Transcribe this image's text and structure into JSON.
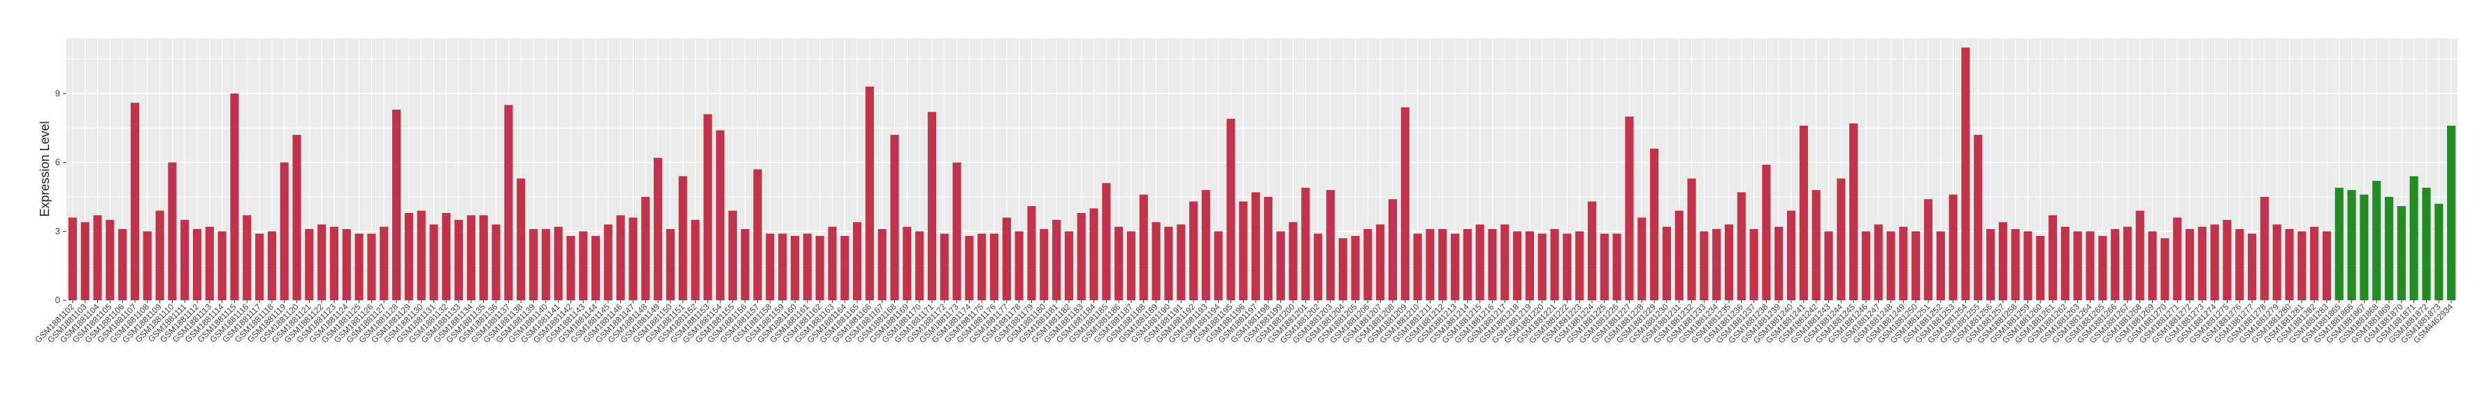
{
  "chart_data": {
    "type": "bar",
    "title": "",
    "xlabel": "",
    "ylabel": "Expression Level",
    "ylim": [
      0,
      11.4
    ],
    "yticks": [
      0,
      3,
      6,
      9
    ],
    "grid": true,
    "legend": "none",
    "colors": {
      "group_a": "#C0334A",
      "group_b": "#228B22",
      "panel": "#EBEBEB",
      "grid": "#FFFFFF"
    },
    "categories": [
      "GSM1881102",
      "GSM1881103",
      "GSM1881104",
      "GSM1881105",
      "GSM1881106",
      "GSM1881107",
      "GSM1881108",
      "GSM1881109",
      "GSM1881110",
      "GSM1881111",
      "GSM1881112",
      "GSM1881113",
      "GSM1881114",
      "GSM1881115",
      "GSM1881116",
      "GSM1881117",
      "GSM1881118",
      "GSM1881119",
      "GSM1881120",
      "GSM1881121",
      "GSM1881122",
      "GSM1881123",
      "GSM1881124",
      "GSM1881125",
      "GSM1881126",
      "GSM1881127",
      "GSM1881128",
      "GSM1881129",
      "GSM1881130",
      "GSM1881131",
      "GSM1881132",
      "GSM1881133",
      "GSM1881134",
      "GSM1881135",
      "GSM1881136",
      "GSM1881137",
      "GSM1881138",
      "GSM1881139",
      "GSM1881140",
      "GSM1881141",
      "GSM1881142",
      "GSM1881143",
      "GSM1881144",
      "GSM1881145",
      "GSM1881146",
      "GSM1881147",
      "GSM1881148",
      "GSM1881149",
      "GSM1881150",
      "GSM1881151",
      "GSM1881152",
      "GSM1881153",
      "GSM1881154",
      "GSM1881155",
      "GSM1881156",
      "GSM1881157",
      "GSM1881158",
      "GSM1881159",
      "GSM1881160",
      "GSM1881161",
      "GSM1881162",
      "GSM1881163",
      "GSM1881164",
      "GSM1881165",
      "GSM1881166",
      "GSM1881167",
      "GSM1881168",
      "GSM1881169",
      "GSM1881170",
      "GSM1881171",
      "GSM1881172",
      "GSM1881173",
      "GSM1881174",
      "GSM1881175",
      "GSM1881176",
      "GSM1881177",
      "GSM1881178",
      "GSM1881179",
      "GSM1881180",
      "GSM1881181",
      "GSM1881182",
      "GSM1881183",
      "GSM1881184",
      "GSM1881185",
      "GSM1881186",
      "GSM1881187",
      "GSM1881188",
      "GSM1881189",
      "GSM1881190",
      "GSM1881191",
      "GSM1881192",
      "GSM1881193",
      "GSM1881194",
      "GSM1881195",
      "GSM1881196",
      "GSM1881197",
      "GSM1881198",
      "GSM1881199",
      "GSM1881200",
      "GSM1881201",
      "GSM1881202",
      "GSM1881203",
      "GSM1881204",
      "GSM1881205",
      "GSM1881206",
      "GSM1881207",
      "GSM1881208",
      "GSM1881209",
      "GSM1881210",
      "GSM1881211",
      "GSM1881212",
      "GSM1881213",
      "GSM1881214",
      "GSM1881215",
      "GSM1881216",
      "GSM1881217",
      "GSM1881218",
      "GSM1881219",
      "GSM1881220",
      "GSM1881221",
      "GSM1881222",
      "GSM1881223",
      "GSM1881224",
      "GSM1881225",
      "GSM1881226",
      "GSM1881227",
      "GSM1881228",
      "GSM1881229",
      "GSM1881230",
      "GSM1881231",
      "GSM1881232",
      "GSM1881233",
      "GSM1881234",
      "GSM1881235",
      "GSM1881236",
      "GSM1881237",
      "GSM1881238",
      "GSM1881239",
      "GSM1881240",
      "GSM1881241",
      "GSM1881242",
      "GSM1881243",
      "GSM1881244",
      "GSM1881245",
      "GSM1881246",
      "GSM1881247",
      "GSM1881248",
      "GSM1881249",
      "GSM1881250",
      "GSM1881251",
      "GSM1881252",
      "GSM1881253",
      "GSM1881254",
      "GSM1881255",
      "GSM1881256",
      "GSM1881257",
      "GSM1881258",
      "GSM1881259",
      "GSM1881260",
      "GSM1881261",
      "GSM1881262",
      "GSM1881263",
      "GSM1881264",
      "GSM1881265",
      "GSM1881266",
      "GSM1881267",
      "GSM1881268",
      "GSM1881269",
      "GSM1881270",
      "GSM1881271",
      "GSM1881272",
      "GSM1881273",
      "GSM1881274",
      "GSM1881275",
      "GSM1881276",
      "GSM1881277",
      "GSM1881278",
      "GSM1881279",
      "GSM1881280",
      "GSM1881281",
      "GSM1881282",
      "GSM1881283",
      "GSM1881865",
      "GSM1881866",
      "GSM1881867",
      "GSM1881868",
      "GSM1881869",
      "GSM1881870",
      "GSM1881871",
      "GSM1881872",
      "GSM1881873",
      "GSM4462934"
    ],
    "groups": [
      "a",
      "a",
      "a",
      "a",
      "a",
      "a",
      "a",
      "a",
      "a",
      "a",
      "a",
      "a",
      "a",
      "a",
      "a",
      "a",
      "a",
      "a",
      "a",
      "a",
      "a",
      "a",
      "a",
      "a",
      "a",
      "a",
      "a",
      "a",
      "a",
      "a",
      "a",
      "a",
      "a",
      "a",
      "a",
      "a",
      "a",
      "a",
      "a",
      "a",
      "a",
      "a",
      "a",
      "a",
      "a",
      "a",
      "a",
      "a",
      "a",
      "a",
      "a",
      "a",
      "a",
      "a",
      "a",
      "a",
      "a",
      "a",
      "a",
      "a",
      "a",
      "a",
      "a",
      "a",
      "a",
      "a",
      "a",
      "a",
      "a",
      "a",
      "a",
      "a",
      "a",
      "a",
      "a",
      "a",
      "a",
      "a",
      "a",
      "a",
      "a",
      "a",
      "a",
      "a",
      "a",
      "a",
      "a",
      "a",
      "a",
      "a",
      "a",
      "a",
      "a",
      "a",
      "a",
      "a",
      "a",
      "a",
      "a",
      "a",
      "a",
      "a",
      "a",
      "a",
      "a",
      "a",
      "a",
      "a",
      "a",
      "a",
      "a",
      "a",
      "a",
      "a",
      "a",
      "a",
      "a",
      "a",
      "a",
      "a",
      "a",
      "a",
      "a",
      "a",
      "a",
      "a",
      "a",
      "a",
      "a",
      "a",
      "a",
      "a",
      "a",
      "a",
      "a",
      "a",
      "a",
      "a",
      "a",
      "a",
      "a",
      "a",
      "a",
      "a",
      "a",
      "a",
      "a",
      "a",
      "a",
      "a",
      "a",
      "a",
      "a",
      "a",
      "a",
      "a",
      "a",
      "a",
      "a",
      "a",
      "a",
      "a",
      "a",
      "a",
      "a",
      "a",
      "a",
      "a",
      "a",
      "a",
      "a",
      "a",
      "a",
      "a",
      "a",
      "a",
      "a",
      "a",
      "a",
      "a",
      "a",
      "a",
      "b",
      "b",
      "b",
      "b",
      "b",
      "b",
      "b",
      "b",
      "b",
      "b"
    ],
    "values": [
      3.6,
      3.4,
      3.7,
      3.5,
      3.1,
      8.6,
      3.0,
      3.9,
      6.0,
      3.5,
      3.1,
      3.2,
      3.0,
      9.0,
      3.7,
      2.9,
      3.0,
      6.0,
      7.2,
      3.1,
      3.3,
      3.2,
      3.1,
      2.9,
      2.9,
      3.2,
      8.3,
      3.8,
      3.9,
      3.3,
      3.8,
      3.5,
      3.7,
      3.7,
      3.3,
      8.5,
      5.3,
      3.1,
      3.1,
      3.2,
      2.8,
      3.0,
      2.8,
      3.3,
      3.7,
      3.6,
      4.5,
      6.2,
      3.1,
      5.4,
      3.5,
      8.1,
      7.4,
      3.9,
      3.1,
      5.7,
      2.9,
      2.9,
      2.8,
      2.9,
      2.8,
      3.2,
      2.8,
      3.4,
      9.3,
      3.1,
      7.2,
      3.2,
      3.0,
      8.2,
      2.9,
      6.0,
      2.8,
      2.9,
      2.9,
      3.6,
      3.0,
      4.1,
      3.1,
      3.5,
      3.0,
      3.8,
      4.0,
      5.1,
      3.2,
      3.0,
      4.6,
      3.4,
      3.2,
      3.3,
      4.3,
      4.8,
      3.0,
      7.9,
      4.3,
      4.7,
      4.5,
      3.0,
      3.4,
      4.9,
      2.9,
      4.8,
      2.7,
      2.8,
      3.1,
      3.3,
      4.4,
      8.4,
      2.9,
      3.1,
      3.1,
      2.9,
      3.1,
      3.3,
      3.1,
      3.3,
      3.0,
      3.0,
      2.9,
      3.1,
      2.9,
      3.0,
      4.3,
      2.9,
      2.9,
      8.0,
      3.6,
      6.6,
      3.2,
      3.9,
      5.3,
      3.0,
      3.1,
      3.3,
      4.7,
      3.1,
      5.9,
      3.2,
      3.9,
      7.6,
      4.8,
      3.0,
      5.3,
      7.7,
      3.0,
      3.3,
      3.0,
      3.2,
      3.0,
      4.4,
      3.0,
      4.6,
      11.0,
      7.2,
      3.1,
      3.4,
      3.1,
      3.0,
      2.8,
      3.7,
      3.2,
      3.0,
      3.0,
      2.8,
      3.1,
      3.2,
      3.9,
      3.0,
      2.7,
      3.6,
      3.1,
      3.2,
      3.3,
      3.5,
      3.1,
      2.9,
      4.5,
      3.3,
      3.1,
      3.0,
      3.2,
      3.0,
      4.9,
      4.8,
      4.6,
      5.2,
      4.5,
      4.1,
      5.4,
      4.9,
      4.2,
      7.6
    ]
  }
}
